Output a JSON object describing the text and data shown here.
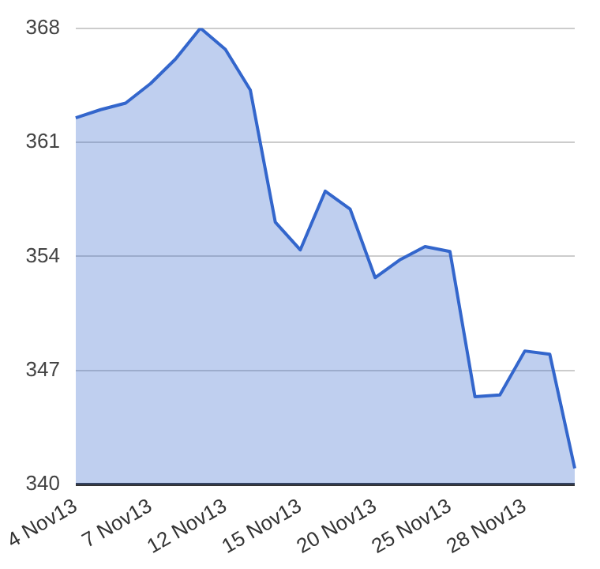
{
  "chart_data": {
    "type": "area",
    "categories": [
      "4 Nov13",
      null,
      null,
      "7 Nov13",
      null,
      null,
      "12 Nov13",
      null,
      null,
      "15 Nov13",
      null,
      null,
      "20 Nov13",
      null,
      null,
      "25 Nov13",
      null,
      null,
      "28 Nov13",
      null,
      null
    ],
    "series": [
      {
        "color": "#3366cc",
        "values": [
          362.5,
          363.0,
          363.4,
          364.6,
          366.1,
          368.0,
          366.7,
          364.2,
          356.1,
          354.4,
          358.0,
          356.9,
          352.7,
          353.8,
          354.6,
          354.3,
          345.4,
          345.5,
          348.2,
          348.0,
          341.0
        ]
      }
    ],
    "ylim": [
      340,
      368
    ],
    "yticks": [
      340,
      347,
      354,
      361,
      368
    ],
    "grid": "y",
    "legend": false
  }
}
